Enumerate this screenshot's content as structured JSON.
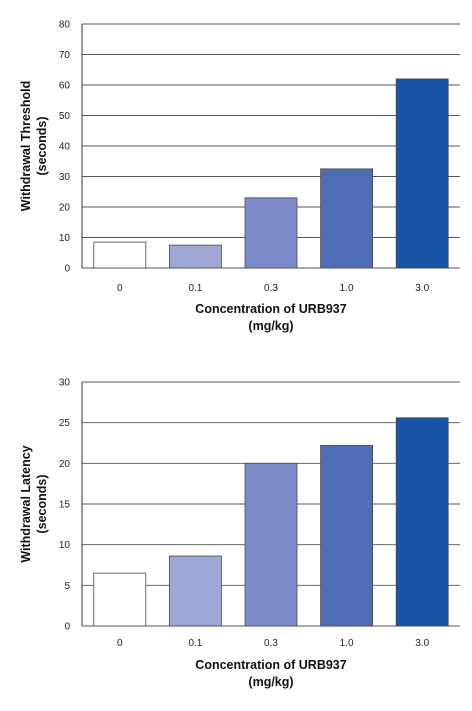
{
  "chart_data": [
    {
      "type": "bar",
      "categories": [
        "0",
        "0.1",
        "0.3",
        "1.0",
        "3.0"
      ],
      "values": [
        8.5,
        7.5,
        23,
        32.5,
        62
      ],
      "colors": [
        "#ffffff",
        "#9fa7d6",
        "#7b8ac8",
        "#4f6db6",
        "#1753a6"
      ],
      "ylabel_line1": "Withdrawal Threshold",
      "ylabel_line2": "(seconds)",
      "xlabel_line1": "Concentration of URB937",
      "xlabel_line2": "(mg/kg)",
      "ylim": [
        0,
        80
      ],
      "yticks": [
        "0",
        "10",
        "20",
        "30",
        "40",
        "50",
        "60",
        "70",
        "80"
      ],
      "grid": true
    },
    {
      "type": "bar",
      "categories": [
        "0",
        "0.1",
        "0.3",
        "1.0",
        "3.0"
      ],
      "values": [
        6.5,
        8.6,
        20,
        22.2,
        25.6
      ],
      "colors": [
        "#ffffff",
        "#9fa7d6",
        "#7b8ac8",
        "#4f6db6",
        "#1753a6"
      ],
      "ylabel_line1": "Withdrawal Latency",
      "ylabel_line2": "(seconds)",
      "xlabel_line1": "Concentration of URB937",
      "xlabel_line2": "(mg/kg)",
      "ylim": [
        0,
        30
      ],
      "yticks": [
        "0",
        "5",
        "10",
        "15",
        "20",
        "25",
        "30"
      ],
      "grid": true
    }
  ]
}
